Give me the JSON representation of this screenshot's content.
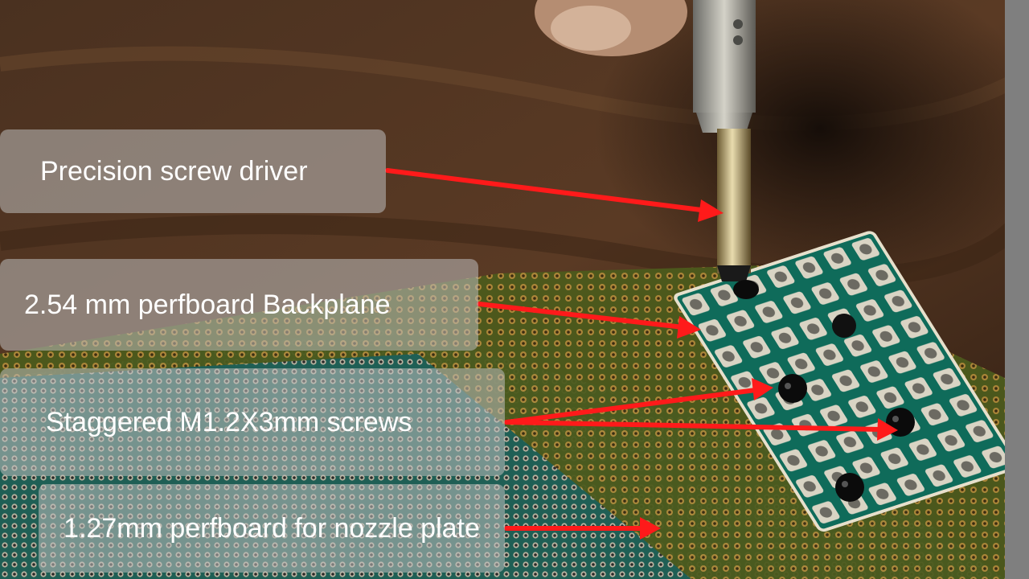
{
  "labels": {
    "screwdriver": "Precision screw driver",
    "backplane": "2.54 mm perfboard  Backplane",
    "screws": "Staggered M1.2X3mm screws",
    "nozzle_plate": "1.27mm perfboard for nozzle plate"
  },
  "colors": {
    "arrow": "#ff1a1a",
    "label_bg": "rgba(190,190,190,0.55)",
    "label_text": "#ffffff",
    "board_green": "#0f6b5a",
    "copper": "#c9a25a"
  }
}
